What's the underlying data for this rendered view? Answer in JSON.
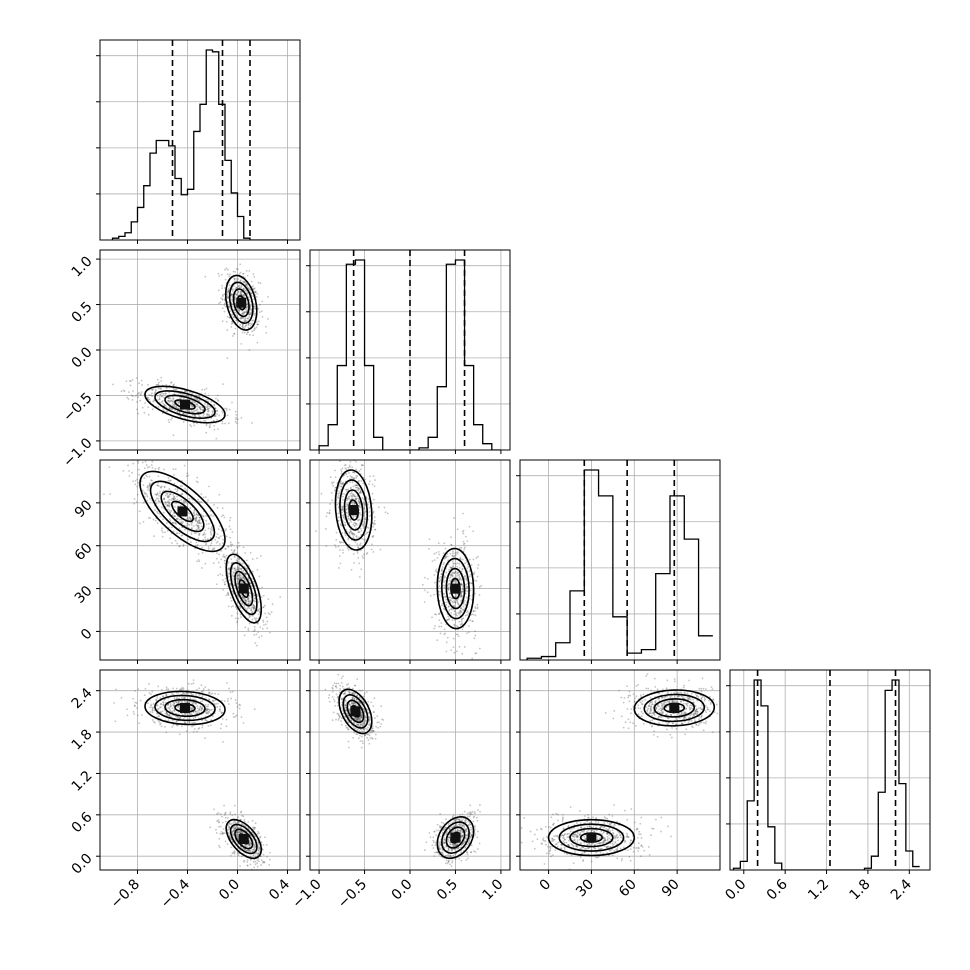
{
  "chart_data": {
    "type": "corner",
    "params": [
      {
        "range": [
          -1.1,
          0.5
        ],
        "ticks": [
          -0.8,
          -0.4,
          0.0,
          0.4
        ],
        "tick_labels": [
          "−0.8",
          "−0.4",
          "0.0",
          "0.4"
        ]
      },
      {
        "range": [
          -1.1,
          1.1
        ],
        "ticks": [
          -1.0,
          -0.5,
          0.0,
          0.5,
          1.0
        ],
        "tick_labels": [
          "−1.0",
          "−0.5",
          "0.0",
          "0.5",
          "1.0"
        ]
      },
      {
        "range": [
          -20,
          120
        ],
        "ticks": [
          0,
          30,
          60,
          90
        ],
        "tick_labels": [
          "0",
          "30",
          "60",
          "90"
        ]
      },
      {
        "range": [
          -0.2,
          2.7
        ],
        "ticks": [
          0.0,
          0.6,
          1.2,
          1.8,
          2.4
        ],
        "tick_labels": [
          "0.0",
          "0.6",
          "1.2",
          "1.8",
          "2.4"
        ]
      }
    ],
    "histograms": [
      {
        "bins": [
          -1.0,
          -0.95,
          -0.9,
          -0.85,
          -0.8,
          -0.75,
          -0.7,
          -0.65,
          -0.6,
          -0.55,
          -0.5,
          -0.45,
          -0.4,
          -0.35,
          -0.3,
          -0.25,
          -0.2,
          -0.15,
          -0.1,
          -0.05,
          0.0,
          0.05,
          0.1,
          0.15,
          0.2,
          0.25,
          0.3,
          0.35,
          0.4
        ],
        "counts": [
          1,
          2,
          4,
          10,
          18,
          30,
          48,
          55,
          55,
          52,
          34,
          25,
          28,
          60,
          75,
          105,
          104,
          75,
          44,
          26,
          13,
          1,
          0,
          0,
          0,
          0,
          0,
          0
        ],
        "quantiles": [
          -0.52,
          -0.12,
          0.1
        ]
      },
      {
        "bins": [
          -1.0,
          -0.9,
          -0.8,
          -0.7,
          -0.6,
          -0.5,
          -0.4,
          -0.3,
          -0.2,
          -0.1,
          0.0,
          0.1,
          0.2,
          0.3,
          0.4,
          0.5,
          0.6,
          0.7,
          0.8,
          0.9,
          1.0
        ],
        "counts": [
          2,
          12,
          40,
          88,
          90,
          40,
          6,
          0,
          0,
          0,
          0,
          1,
          6,
          30,
          88,
          90,
          40,
          12,
          3,
          0
        ],
        "quantiles": [
          -0.62,
          0.0,
          0.6
        ]
      },
      {
        "bins": [
          -15,
          -5,
          5,
          15,
          25,
          35,
          45,
          55,
          65,
          75,
          85,
          95,
          105,
          115
        ],
        "counts": [
          1,
          2,
          10,
          40,
          110,
          95,
          25,
          4,
          6,
          50,
          95,
          70,
          14
        ],
        "quantiles": [
          25,
          55,
          88
        ]
      },
      {
        "bins": [
          -0.15,
          -0.05,
          0.05,
          0.15,
          0.25,
          0.35,
          0.45,
          0.55,
          0.65,
          0.75,
          0.85,
          0.95,
          1.05,
          1.15,
          1.25,
          1.35,
          1.45,
          1.55,
          1.65,
          1.75,
          1.85,
          1.95,
          2.05,
          2.15,
          2.25,
          2.35,
          2.45,
          2.55
        ],
        "counts": [
          1,
          5,
          40,
          110,
          95,
          25,
          4,
          0,
          0,
          0,
          0,
          0,
          0,
          0,
          0,
          0,
          0,
          0,
          0,
          1,
          8,
          45,
          104,
          110,
          50,
          11,
          2
        ],
        "quantiles": [
          0.2,
          1.25,
          2.2
        ]
      }
    ],
    "clusters": {
      "1,0": [
        {
          "cx": 0.03,
          "cy": 0.52,
          "sx": 0.062,
          "sy": 0.15,
          "rho": -0.3
        },
        {
          "cx": -0.42,
          "cy": -0.6,
          "sx": 0.16,
          "sy": 0.1,
          "rho": -0.55
        }
      ],
      "2,0": [
        {
          "cx": -0.44,
          "cy": 84,
          "sx": 0.17,
          "sy": 14,
          "rho": -0.7
        },
        {
          "cx": 0.05,
          "cy": 30,
          "sx": 0.07,
          "sy": 12,
          "rho": -0.6
        }
      ],
      "3,0": [
        {
          "cx": -0.42,
          "cy": 2.15,
          "sx": 0.16,
          "sy": 0.12,
          "rho": -0.1
        },
        {
          "cx": 0.05,
          "cy": 0.25,
          "sx": 0.07,
          "sy": 0.14,
          "rho": -0.55
        }
      ],
      "2,1": [
        {
          "cx": -0.62,
          "cy": 85,
          "sx": 0.1,
          "sy": 14,
          "rho": -0.15
        },
        {
          "cx": 0.5,
          "cy": 30,
          "sx": 0.1,
          "sy": 14,
          "rho": -0.05
        }
      ],
      "3,1": [
        {
          "cx": -0.6,
          "cy": 2.1,
          "sx": 0.09,
          "sy": 0.16,
          "rho": -0.45
        },
        {
          "cx": 0.5,
          "cy": 0.27,
          "sx": 0.1,
          "sy": 0.15,
          "rho": 0.3
        }
      ],
      "3,2": [
        {
          "cx": 88,
          "cy": 2.15,
          "sx": 14,
          "sy": 0.13,
          "rho": 0.05
        },
        {
          "cx": 30,
          "cy": 0.27,
          "sx": 15,
          "sy": 0.13,
          "rho": 0.0
        }
      ]
    },
    "contour_levels": [
      0.5,
      1.0,
      1.5,
      2.0
    ],
    "grid": true,
    "colors": {
      "points": "#555555",
      "lines": "#000000",
      "grid": "#b0b0b0"
    }
  }
}
